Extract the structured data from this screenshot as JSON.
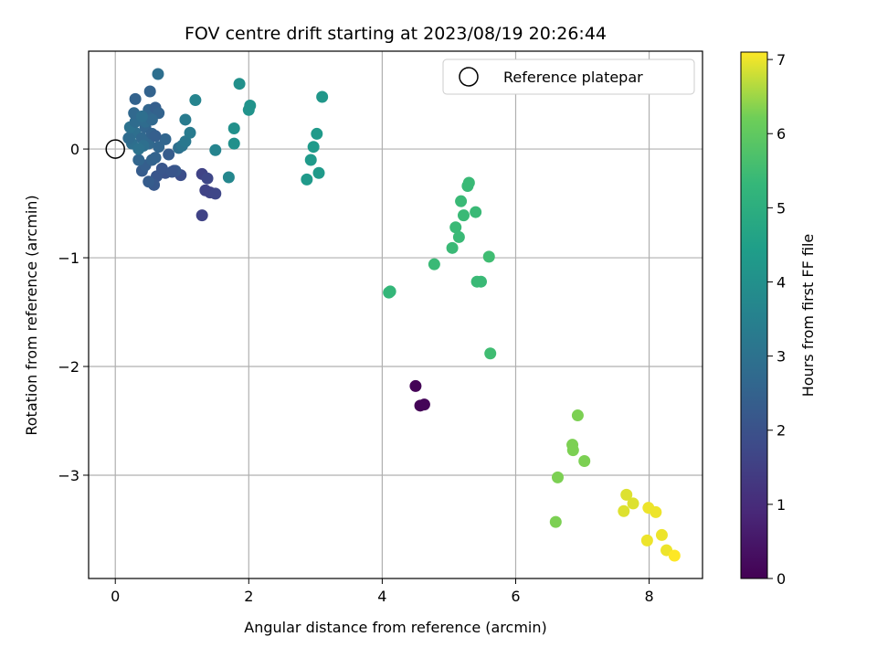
{
  "chart_data": {
    "type": "scatter",
    "title": "FOV centre drift starting at 2023/08/19 20:26:44",
    "xlabel": "Angular distance from reference (arcmin)",
    "ylabel": "Rotation from reference (arcmin)",
    "xlim": [
      -0.4,
      8.8
    ],
    "ylim": [
      -3.95,
      0.9
    ],
    "xticks": [
      0,
      2,
      4,
      6,
      8
    ],
    "yticks": [
      0,
      -1,
      -2,
      -3
    ],
    "grid": true,
    "legend": {
      "position": "top-right",
      "entries": [
        "Reference platepar"
      ]
    },
    "reference_point": {
      "x": 0,
      "y": 0,
      "label": "Reference platepar"
    },
    "colorbar": {
      "label": "Hours from first FF file",
      "colormap": "viridis",
      "min": 0,
      "max": 7.1,
      "ticks": [
        0,
        1,
        2,
        3,
        4,
        5,
        6,
        7
      ]
    },
    "series": [
      {
        "points": [
          {
            "x": 4.5,
            "y": -2.18,
            "c": 0.05
          },
          {
            "x": 4.57,
            "y": -2.36,
            "c": 0.08
          },
          {
            "x": 4.63,
            "y": -2.35,
            "c": 0.1
          },
          {
            "x": 1.3,
            "y": -0.61,
            "c": 1.6
          },
          {
            "x": 1.3,
            "y": -0.23,
            "c": 1.6
          },
          {
            "x": 1.38,
            "y": -0.27,
            "c": 1.7
          },
          {
            "x": 1.35,
            "y": -0.38,
            "c": 1.6
          },
          {
            "x": 1.42,
            "y": -0.4,
            "c": 1.6
          },
          {
            "x": 1.5,
            "y": -0.41,
            "c": 1.7
          },
          {
            "x": 0.98,
            "y": -0.24,
            "c": 1.9
          },
          {
            "x": 0.88,
            "y": -0.2,
            "c": 2.0
          },
          {
            "x": 0.75,
            "y": -0.22,
            "c": 2.0
          },
          {
            "x": 0.62,
            "y": -0.25,
            "c": 2.1
          },
          {
            "x": 0.58,
            "y": -0.33,
            "c": 2.2
          },
          {
            "x": 0.5,
            "y": -0.3,
            "c": 2.3
          },
          {
            "x": 0.4,
            "y": -0.2,
            "c": 2.3
          },
          {
            "x": 0.45,
            "y": -0.15,
            "c": 2.4
          },
          {
            "x": 0.7,
            "y": -0.18,
            "c": 2.1
          },
          {
            "x": 0.55,
            "y": -0.1,
            "c": 2.5
          },
          {
            "x": 0.8,
            "y": -0.05,
            "c": 2.3
          },
          {
            "x": 0.75,
            "y": 0.09,
            "c": 2.6
          },
          {
            "x": 0.35,
            "y": -0.1,
            "c": 2.6
          },
          {
            "x": 0.25,
            "y": 0.05,
            "c": 2.9
          },
          {
            "x": 0.3,
            "y": 0.15,
            "c": 2.9
          },
          {
            "x": 0.2,
            "y": 0.1,
            "c": 2.8
          },
          {
            "x": 0.22,
            "y": 0.2,
            "c": 3.0
          },
          {
            "x": 0.3,
            "y": 0.25,
            "c": 2.8
          },
          {
            "x": 0.4,
            "y": 0.1,
            "c": 2.7
          },
          {
            "x": 0.45,
            "y": 0.2,
            "c": 2.6
          },
          {
            "x": 0.5,
            "y": 0.05,
            "c": 2.7
          },
          {
            "x": 0.55,
            "y": 0.14,
            "c": 2.5
          },
          {
            "x": 0.6,
            "y": 0.12,
            "c": 2.4
          },
          {
            "x": 0.65,
            "y": 0.02,
            "c": 2.6
          },
          {
            "x": 0.6,
            "y": -0.08,
            "c": 2.5
          },
          {
            "x": 0.42,
            "y": 0.03,
            "c": 2.9
          },
          {
            "x": 0.35,
            "y": 0.0,
            "c": 3.0
          },
          {
            "x": 0.28,
            "y": 0.33,
            "c": 2.7
          },
          {
            "x": 0.5,
            "y": 0.36,
            "c": 2.6
          },
          {
            "x": 0.6,
            "y": 0.38,
            "c": 2.4
          },
          {
            "x": 0.65,
            "y": 0.33,
            "c": 2.5
          },
          {
            "x": 0.3,
            "y": 0.46,
            "c": 2.5
          },
          {
            "x": 0.52,
            "y": 0.53,
            "c": 2.5
          },
          {
            "x": 0.64,
            "y": 0.69,
            "c": 2.9
          },
          {
            "x": 0.45,
            "y": 0.25,
            "c": 2.8
          },
          {
            "x": 0.55,
            "y": 0.27,
            "c": 2.7
          },
          {
            "x": 0.4,
            "y": 0.3,
            "c": 2.9
          },
          {
            "x": 0.9,
            "y": -0.2,
            "c": 2.2
          },
          {
            "x": 0.85,
            "y": -0.21,
            "c": 2.1
          },
          {
            "x": 0.95,
            "y": 0.01,
            "c": 2.9
          },
          {
            "x": 1.0,
            "y": 0.03,
            "c": 3.1
          },
          {
            "x": 1.05,
            "y": 0.07,
            "c": 3.2
          },
          {
            "x": 1.12,
            "y": 0.15,
            "c": 3.3
          },
          {
            "x": 1.05,
            "y": 0.27,
            "c": 3.3
          },
          {
            "x": 1.2,
            "y": 0.45,
            "c": 3.6
          },
          {
            "x": 1.5,
            "y": -0.01,
            "c": 3.6
          },
          {
            "x": 1.7,
            "y": -0.26,
            "c": 3.7
          },
          {
            "x": 1.78,
            "y": 0.05,
            "c": 4.0
          },
          {
            "x": 1.78,
            "y": 0.19,
            "c": 4.0
          },
          {
            "x": 1.86,
            "y": 0.6,
            "c": 4.0
          },
          {
            "x": 2.0,
            "y": 0.36,
            "c": 4.1
          },
          {
            "x": 2.02,
            "y": 0.4,
            "c": 4.1
          },
          {
            "x": 2.87,
            "y": -0.28,
            "c": 4.3
          },
          {
            "x": 2.93,
            "y": -0.1,
            "c": 4.3
          },
          {
            "x": 2.97,
            "y": 0.02,
            "c": 4.3
          },
          {
            "x": 3.02,
            "y": 0.14,
            "c": 4.3
          },
          {
            "x": 3.05,
            "y": -0.22,
            "c": 4.3
          },
          {
            "x": 3.1,
            "y": 0.48,
            "c": 4.2
          },
          {
            "x": 4.1,
            "y": -1.32,
            "c": 5.3
          },
          {
            "x": 4.12,
            "y": -1.31,
            "c": 5.3
          },
          {
            "x": 4.78,
            "y": -1.06,
            "c": 5.4
          },
          {
            "x": 5.05,
            "y": -0.91,
            "c": 5.4
          },
          {
            "x": 5.1,
            "y": -0.72,
            "c": 5.4
          },
          {
            "x": 5.15,
            "y": -0.81,
            "c": 5.4
          },
          {
            "x": 5.18,
            "y": -0.48,
            "c": 5.4
          },
          {
            "x": 5.22,
            "y": -0.61,
            "c": 5.4
          },
          {
            "x": 5.28,
            "y": -0.34,
            "c": 5.4
          },
          {
            "x": 5.3,
            "y": -0.31,
            "c": 5.4
          },
          {
            "x": 5.4,
            "y": -0.58,
            "c": 5.4
          },
          {
            "x": 5.42,
            "y": -1.22,
            "c": 5.4
          },
          {
            "x": 5.48,
            "y": -1.22,
            "c": 5.4
          },
          {
            "x": 5.6,
            "y": -0.99,
            "c": 5.5
          },
          {
            "x": 5.62,
            "y": -1.88,
            "c": 5.5
          },
          {
            "x": 6.6,
            "y": -3.43,
            "c": 6.3
          },
          {
            "x": 6.63,
            "y": -3.02,
            "c": 6.3
          },
          {
            "x": 6.85,
            "y": -2.72,
            "c": 6.3
          },
          {
            "x": 6.86,
            "y": -2.77,
            "c": 6.3
          },
          {
            "x": 6.93,
            "y": -2.45,
            "c": 6.3
          },
          {
            "x": 7.03,
            "y": -2.87,
            "c": 6.3
          },
          {
            "x": 7.62,
            "y": -3.33,
            "c": 6.9
          },
          {
            "x": 7.66,
            "y": -3.18,
            "c": 6.9
          },
          {
            "x": 7.76,
            "y": -3.26,
            "c": 6.9
          },
          {
            "x": 7.97,
            "y": -3.6,
            "c": 7.0
          },
          {
            "x": 7.99,
            "y": -3.3,
            "c": 7.0
          },
          {
            "x": 8.1,
            "y": -3.34,
            "c": 7.0
          },
          {
            "x": 8.19,
            "y": -3.55,
            "c": 7.0
          },
          {
            "x": 8.26,
            "y": -3.69,
            "c": 7.0
          },
          {
            "x": 8.38,
            "y": -3.74,
            "c": 7.1
          }
        ]
      }
    ]
  }
}
